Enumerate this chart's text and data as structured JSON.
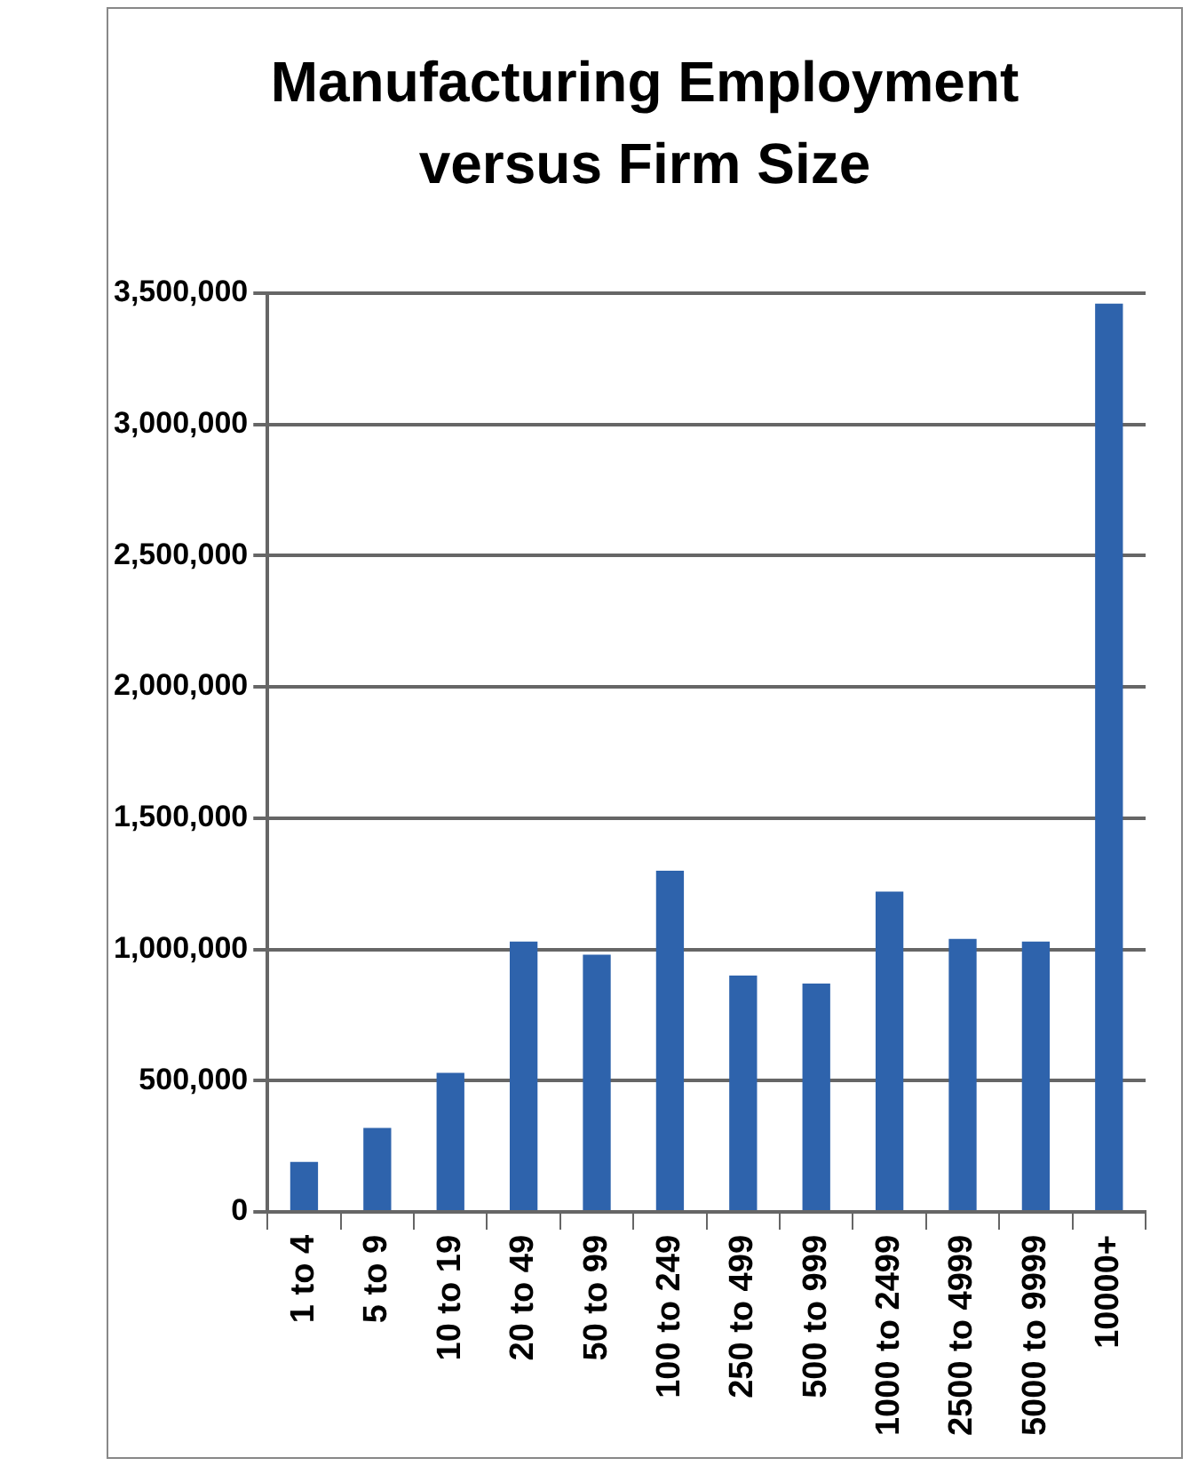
{
  "chart_data": {
    "type": "bar",
    "title": "Manufacturing Employment versus Firm Size",
    "categories": [
      "1 to 4",
      "5 to 9",
      "10 to 19",
      "20 to 49",
      "50 to 99",
      "100 to 249",
      "250 to 499",
      "500 to 999",
      "1000 to 2499",
      "2500 to 4999",
      "5000 to 9999",
      "10000+"
    ],
    "values": [
      190000,
      320000,
      530000,
      1030000,
      980000,
      1300000,
      900000,
      870000,
      1220000,
      1040000,
      1030000,
      3460000
    ],
    "color": "#2e63ac",
    "ylim": [
      0,
      3500000
    ],
    "yticks": [
      {
        "value": 0,
        "label": "0"
      },
      {
        "value": 500000,
        "label": "500,000"
      },
      {
        "value": 1000000,
        "label": "1,000,000"
      },
      {
        "value": 1500000,
        "label": "1,500,000"
      },
      {
        "value": 2000000,
        "label": "2,000,000"
      },
      {
        "value": 2500000,
        "label": "2,500,000"
      },
      {
        "value": 3000000,
        "label": "3,000,000"
      },
      {
        "value": 3500000,
        "label": "3,500,000"
      }
    ],
    "grid": "y",
    "legend": false
  }
}
